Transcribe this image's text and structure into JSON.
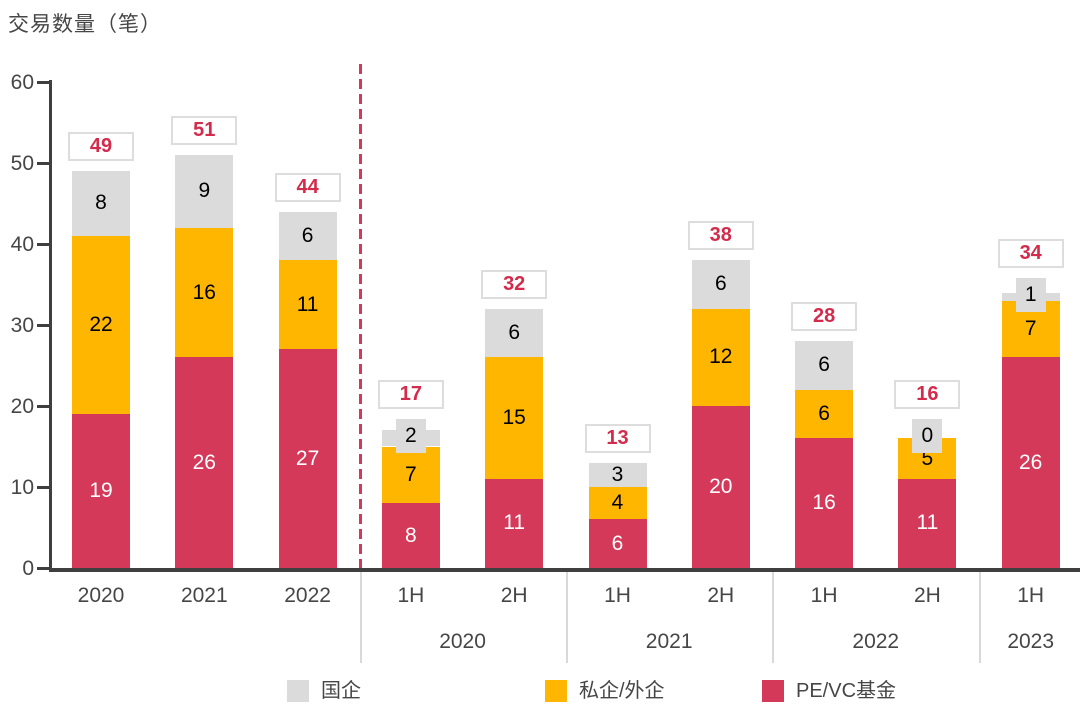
{
  "chart_data": {
    "type": "bar",
    "stacked": true,
    "title": "交易数量（笔）",
    "y_axis": {
      "min": 0,
      "max": 60,
      "tick_step": 10,
      "ticks": [
        0,
        10,
        20,
        30,
        40,
        50,
        60
      ],
      "grid": false
    },
    "legend_position": "bottom",
    "legend": [
      {
        "name": "国企",
        "color": "#dbdbdb"
      },
      {
        "name": "私企/外企",
        "color": "#ffb600"
      },
      {
        "name": "PE/VC基金",
        "color": "#d4395a"
      }
    ],
    "series_order_bottom_to_top": [
      "PE/VC基金",
      "私企/外企",
      "国企"
    ],
    "bars": [
      {
        "label": "2020",
        "group": "",
        "pevc": 19,
        "private_foreign": 22,
        "soe": 8,
        "total": 49
      },
      {
        "label": "2021",
        "group": "",
        "pevc": 26,
        "private_foreign": 16,
        "soe": 9,
        "total": 51
      },
      {
        "label": "2022",
        "group": "",
        "pevc": 27,
        "private_foreign": 11,
        "soe": 6,
        "total": 44
      },
      {
        "label": "1H",
        "group": "2020",
        "pevc": 8,
        "private_foreign": 7,
        "soe": 2,
        "total": 17
      },
      {
        "label": "2H",
        "group": "2020",
        "pevc": 11,
        "private_foreign": 15,
        "soe": 6,
        "total": 32
      },
      {
        "label": "1H",
        "group": "2021",
        "pevc": 6,
        "private_foreign": 4,
        "soe": 3,
        "total": 13
      },
      {
        "label": "2H",
        "group": "2021",
        "pevc": 20,
        "private_foreign": 12,
        "soe": 6,
        "total": 38
      },
      {
        "label": "1H",
        "group": "2022",
        "pevc": 16,
        "private_foreign": 6,
        "soe": 6,
        "total": 28
      },
      {
        "label": "2H",
        "group": "2022",
        "pevc": 11,
        "private_foreign": 5,
        "soe": 0,
        "total": 16
      },
      {
        "label": "1H",
        "group": "2023",
        "pevc": 26,
        "private_foreign": 7,
        "soe": 1,
        "total": 34
      }
    ],
    "group_labels": [
      "2020",
      "2021",
      "2022",
      "2023"
    ],
    "divider_after_bar_index": 2,
    "colors": {
      "pevc": "#d4395a",
      "private_foreign": "#ffb600",
      "soe": "#dbdbdb",
      "total_text": "#d32b4b",
      "axis": "#3f3f3f",
      "label_text": "#464646",
      "divider": "#d4395a",
      "group_separator": "#d9d9d9",
      "total_box_border": "#dddddd",
      "label_on_red": "#ffffff",
      "label_on_light": "#000000"
    }
  }
}
